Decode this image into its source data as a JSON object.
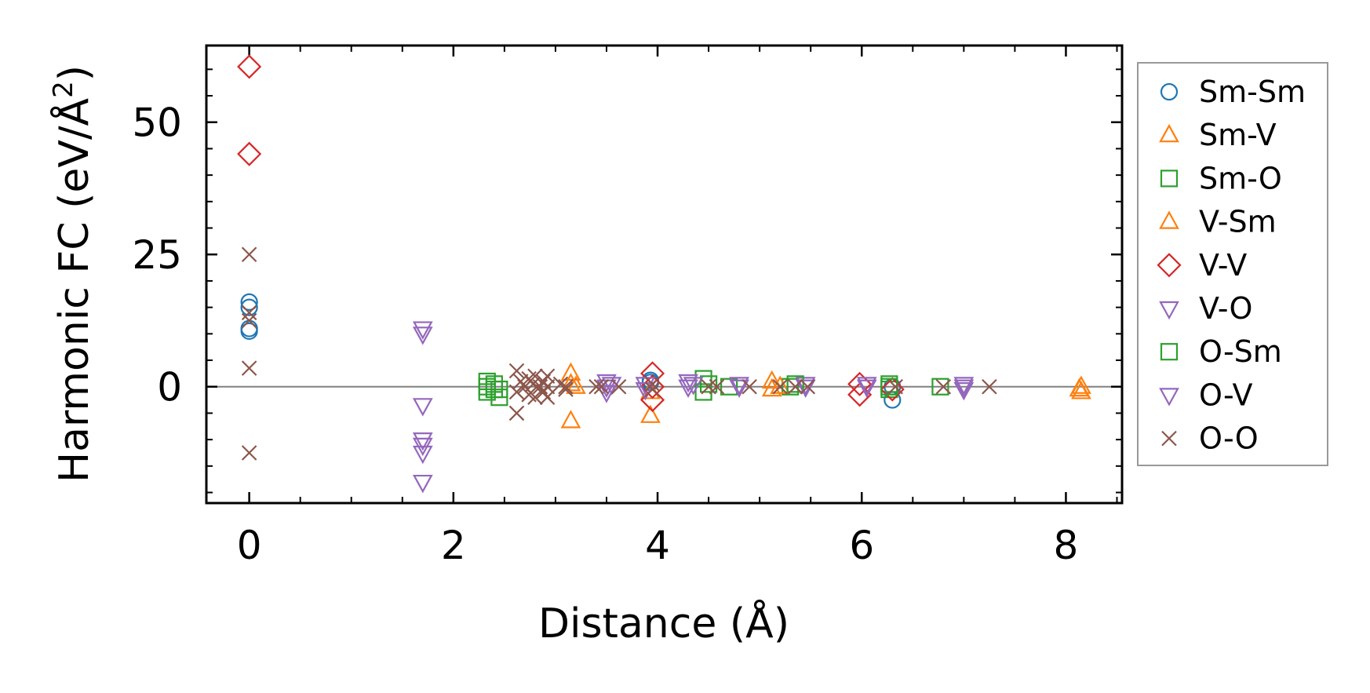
{
  "chart_data": {
    "type": "scatter",
    "xlabel": "Distance (Å)",
    "ylabel_main": "Harmonic FC (eV/Å",
    "ylabel_sup": "2",
    "ylabel_close": ")",
    "xlim": [
      -0.42,
      8.55
    ],
    "ylim": [
      -22,
      64.5
    ],
    "x_ticks": [
      0,
      2,
      4,
      6,
      8
    ],
    "x_tick_labels": [
      "0",
      "2",
      "4",
      "6",
      "8"
    ],
    "y_ticks": [
      0,
      25,
      50
    ],
    "y_tick_labels": [
      "0",
      "25",
      "50"
    ],
    "x_minor_step": 0.5,
    "y_minor_step": 5,
    "zero_line": true,
    "grid": false,
    "legend_position": "outside-right",
    "series": [
      {
        "name": "Sm-Sm",
        "marker": "circle",
        "color": "#1f77b4",
        "points": [
          [
            0,
            16
          ],
          [
            0,
            15
          ],
          [
            0,
            11
          ],
          [
            0,
            10.5
          ],
          [
            3.93,
            1.2
          ],
          [
            3.93,
            0.8
          ],
          [
            6.3,
            -2.5
          ],
          [
            6.3,
            0
          ]
        ]
      },
      {
        "name": "Sm-V",
        "marker": "triangle-up",
        "color": "#ff7f0e",
        "points": [
          [
            3.15,
            2.5
          ],
          [
            3.15,
            0.5
          ],
          [
            3.15,
            -6.5
          ],
          [
            3.93,
            -5.5
          ],
          [
            3.93,
            -1
          ],
          [
            5.12,
            1
          ],
          [
            5.12,
            -0.5
          ],
          [
            8.15,
            0
          ],
          [
            8.15,
            -1
          ]
        ]
      },
      {
        "name": "Sm-O",
        "marker": "square",
        "color": "#2ca02c",
        "points": [
          [
            2.33,
            1
          ],
          [
            2.33,
            0
          ],
          [
            2.33,
            -1
          ],
          [
            2.45,
            -0.5
          ],
          [
            2.45,
            -2
          ],
          [
            4.45,
            1.5
          ],
          [
            4.45,
            -1
          ],
          [
            4.7,
            0
          ],
          [
            5.3,
            0
          ],
          [
            6.27,
            0.5
          ],
          [
            6.27,
            -0.5
          ],
          [
            6.77,
            0
          ]
        ]
      },
      {
        "name": "V-Sm",
        "marker": "triangle-up",
        "color": "#ff7f0e",
        "points": [
          [
            3.2,
            0
          ],
          [
            5.2,
            0
          ],
          [
            8.13,
            -0.5
          ]
        ]
      },
      {
        "name": "V-V",
        "marker": "diamond",
        "color": "#d62728",
        "points": [
          [
            0,
            60.5
          ],
          [
            0,
            44
          ],
          [
            3.95,
            2.5
          ],
          [
            3.95,
            -2.5
          ],
          [
            3.95,
            0
          ],
          [
            5.98,
            0.5
          ],
          [
            5.98,
            -1.5
          ],
          [
            6.3,
            -0.5
          ]
        ]
      },
      {
        "name": "V-O",
        "marker": "triangle-down",
        "color": "#9467bd",
        "points": [
          [
            1.7,
            11
          ],
          [
            1.7,
            10
          ],
          [
            1.7,
            -3.5
          ],
          [
            1.7,
            -10
          ],
          [
            1.7,
            -11
          ],
          [
            1.7,
            -12.5
          ],
          [
            1.7,
            -18
          ],
          [
            3.5,
            1
          ],
          [
            3.5,
            0
          ],
          [
            3.5,
            -1
          ],
          [
            3.88,
            0.5
          ],
          [
            3.88,
            -0.5
          ],
          [
            4.3,
            1
          ],
          [
            4.3,
            0
          ],
          [
            4.8,
            0.5
          ],
          [
            5.45,
            0.5
          ],
          [
            6.05,
            0.5
          ],
          [
            7.0,
            0.5
          ],
          [
            7.0,
            -0.5
          ]
        ]
      },
      {
        "name": "O-Sm",
        "marker": "square",
        "color": "#2ca02c",
        "points": [
          [
            2.4,
            0.5
          ],
          [
            2.4,
            -0.5
          ],
          [
            4.5,
            0.5
          ],
          [
            5.35,
            0.5
          ],
          [
            6.27,
            0
          ]
        ]
      },
      {
        "name": "O-V",
        "marker": "triangle-down",
        "color": "#9467bd",
        "points": [
          [
            3.55,
            0.5
          ],
          [
            4.35,
            0.5
          ],
          [
            4.8,
            0
          ],
          [
            5.45,
            0
          ],
          [
            6.05,
            0
          ],
          [
            7.0,
            0
          ]
        ]
      },
      {
        "name": "O-O",
        "marker": "x",
        "color": "#8c564b",
        "points": [
          [
            0,
            25
          ],
          [
            0,
            14
          ],
          [
            0,
            12.5
          ],
          [
            0,
            3.5
          ],
          [
            0,
            -12.5
          ],
          [
            2.62,
            3
          ],
          [
            2.62,
            -1
          ],
          [
            2.62,
            -5
          ],
          [
            2.66,
            1
          ],
          [
            2.7,
            0
          ],
          [
            2.74,
            1.5
          ],
          [
            2.74,
            -1.5
          ],
          [
            2.78,
            0.5
          ],
          [
            2.8,
            2
          ],
          [
            2.8,
            -2
          ],
          [
            2.85,
            0
          ],
          [
            2.88,
            1
          ],
          [
            2.88,
            -1
          ],
          [
            2.92,
            2
          ],
          [
            2.92,
            0
          ],
          [
            2.92,
            -2
          ],
          [
            3.05,
            0.5
          ],
          [
            3.1,
            0
          ],
          [
            3.1,
            -0.5
          ],
          [
            3.4,
            0
          ],
          [
            3.45,
            0
          ],
          [
            3.62,
            0
          ],
          [
            3.95,
            0.5
          ],
          [
            3.95,
            -0.5
          ],
          [
            4.5,
            0
          ],
          [
            4.58,
            0
          ],
          [
            4.9,
            0
          ],
          [
            5.2,
            0
          ],
          [
            5.35,
            0
          ],
          [
            5.47,
            0
          ],
          [
            6.33,
            0
          ],
          [
            6.8,
            0
          ],
          [
            7.25,
            0
          ]
        ]
      }
    ]
  }
}
